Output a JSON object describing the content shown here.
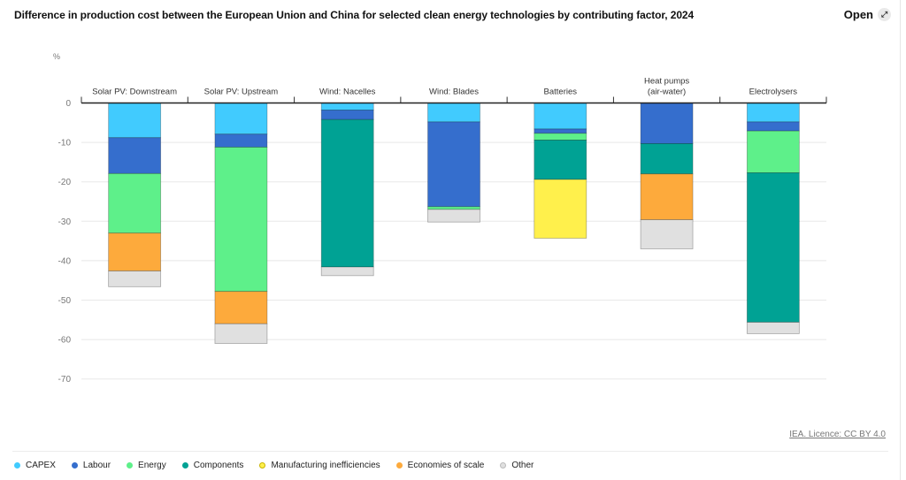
{
  "header": {
    "title": "Difference in production cost between the European Union and China for selected clean energy technologies by contributing factor, 2024",
    "open_label": "Open",
    "open_icon": "expand-arrows-icon"
  },
  "source_label": "IEA. Licence: CC BY 4.0",
  "chart_data": {
    "type": "bar",
    "stacked": true,
    "title": "Difference in production cost between the European Union and China for selected clean energy technologies by contributing factor, 2024",
    "ylabel": "%",
    "xlabel": "",
    "ylim": [
      -70,
      0
    ],
    "yticks": [
      0,
      -10,
      -20,
      -30,
      -40,
      -50,
      -60,
      -70
    ],
    "ytick_labels": [
      "0",
      "-10",
      "-20",
      "-30",
      "-40",
      "-50",
      "-60",
      "-70"
    ],
    "grid": true,
    "legend_position": "bottom-left",
    "categories": [
      "Solar PV: Downstream",
      "Solar PV: Upstream",
      "Wind: Nacelles",
      "Wind: Blades",
      "Batteries",
      "Heat pumps (air-water)",
      "Electrolysers"
    ],
    "category_lines": [
      [
        "Solar PV: Downstream"
      ],
      [
        "Solar PV: Upstream"
      ],
      [
        "Wind: Nacelles"
      ],
      [
        "Wind: Blades"
      ],
      [
        "Batteries"
      ],
      [
        "Heat pumps",
        "(air-water)"
      ],
      [
        "Electrolysers"
      ]
    ],
    "series": [
      {
        "name": "CAPEX",
        "color": "#41cbfe",
        "values": [
          -8.8,
          -7.9,
          -1.8,
          -4.8,
          -6.6,
          0,
          -4.8
        ]
      },
      {
        "name": "Labour",
        "color": "#356ecd",
        "values": [
          -9.1,
          -3.3,
          -2.4,
          -21.5,
          -1.1,
          -10.3,
          -2.3
        ]
      },
      {
        "name": "Energy",
        "color": "#5ef08a",
        "values": [
          -15.1,
          -36.6,
          0,
          -0.7,
          -1.7,
          0,
          -10.6
        ]
      },
      {
        "name": "Components",
        "color": "#00a294",
        "values": [
          0,
          0,
          -37.4,
          0,
          -10.0,
          -7.7,
          -37.9
        ]
      },
      {
        "name": "Manufacturing inefficiencies",
        "color": "#fff04c",
        "values": [
          0,
          0,
          0,
          0,
          -14.9,
          0,
          0
        ]
      },
      {
        "name": "Economies of scale",
        "color": "#fdaa3c",
        "values": [
          -9.6,
          -8.2,
          0,
          0,
          0,
          -11.6,
          0
        ]
      },
      {
        "name": "Other",
        "color": "#e0e0e0",
        "values": [
          -4.0,
          -5.0,
          -2.2,
          -3.2,
          0,
          -7.4,
          -2.9
        ]
      }
    ]
  }
}
